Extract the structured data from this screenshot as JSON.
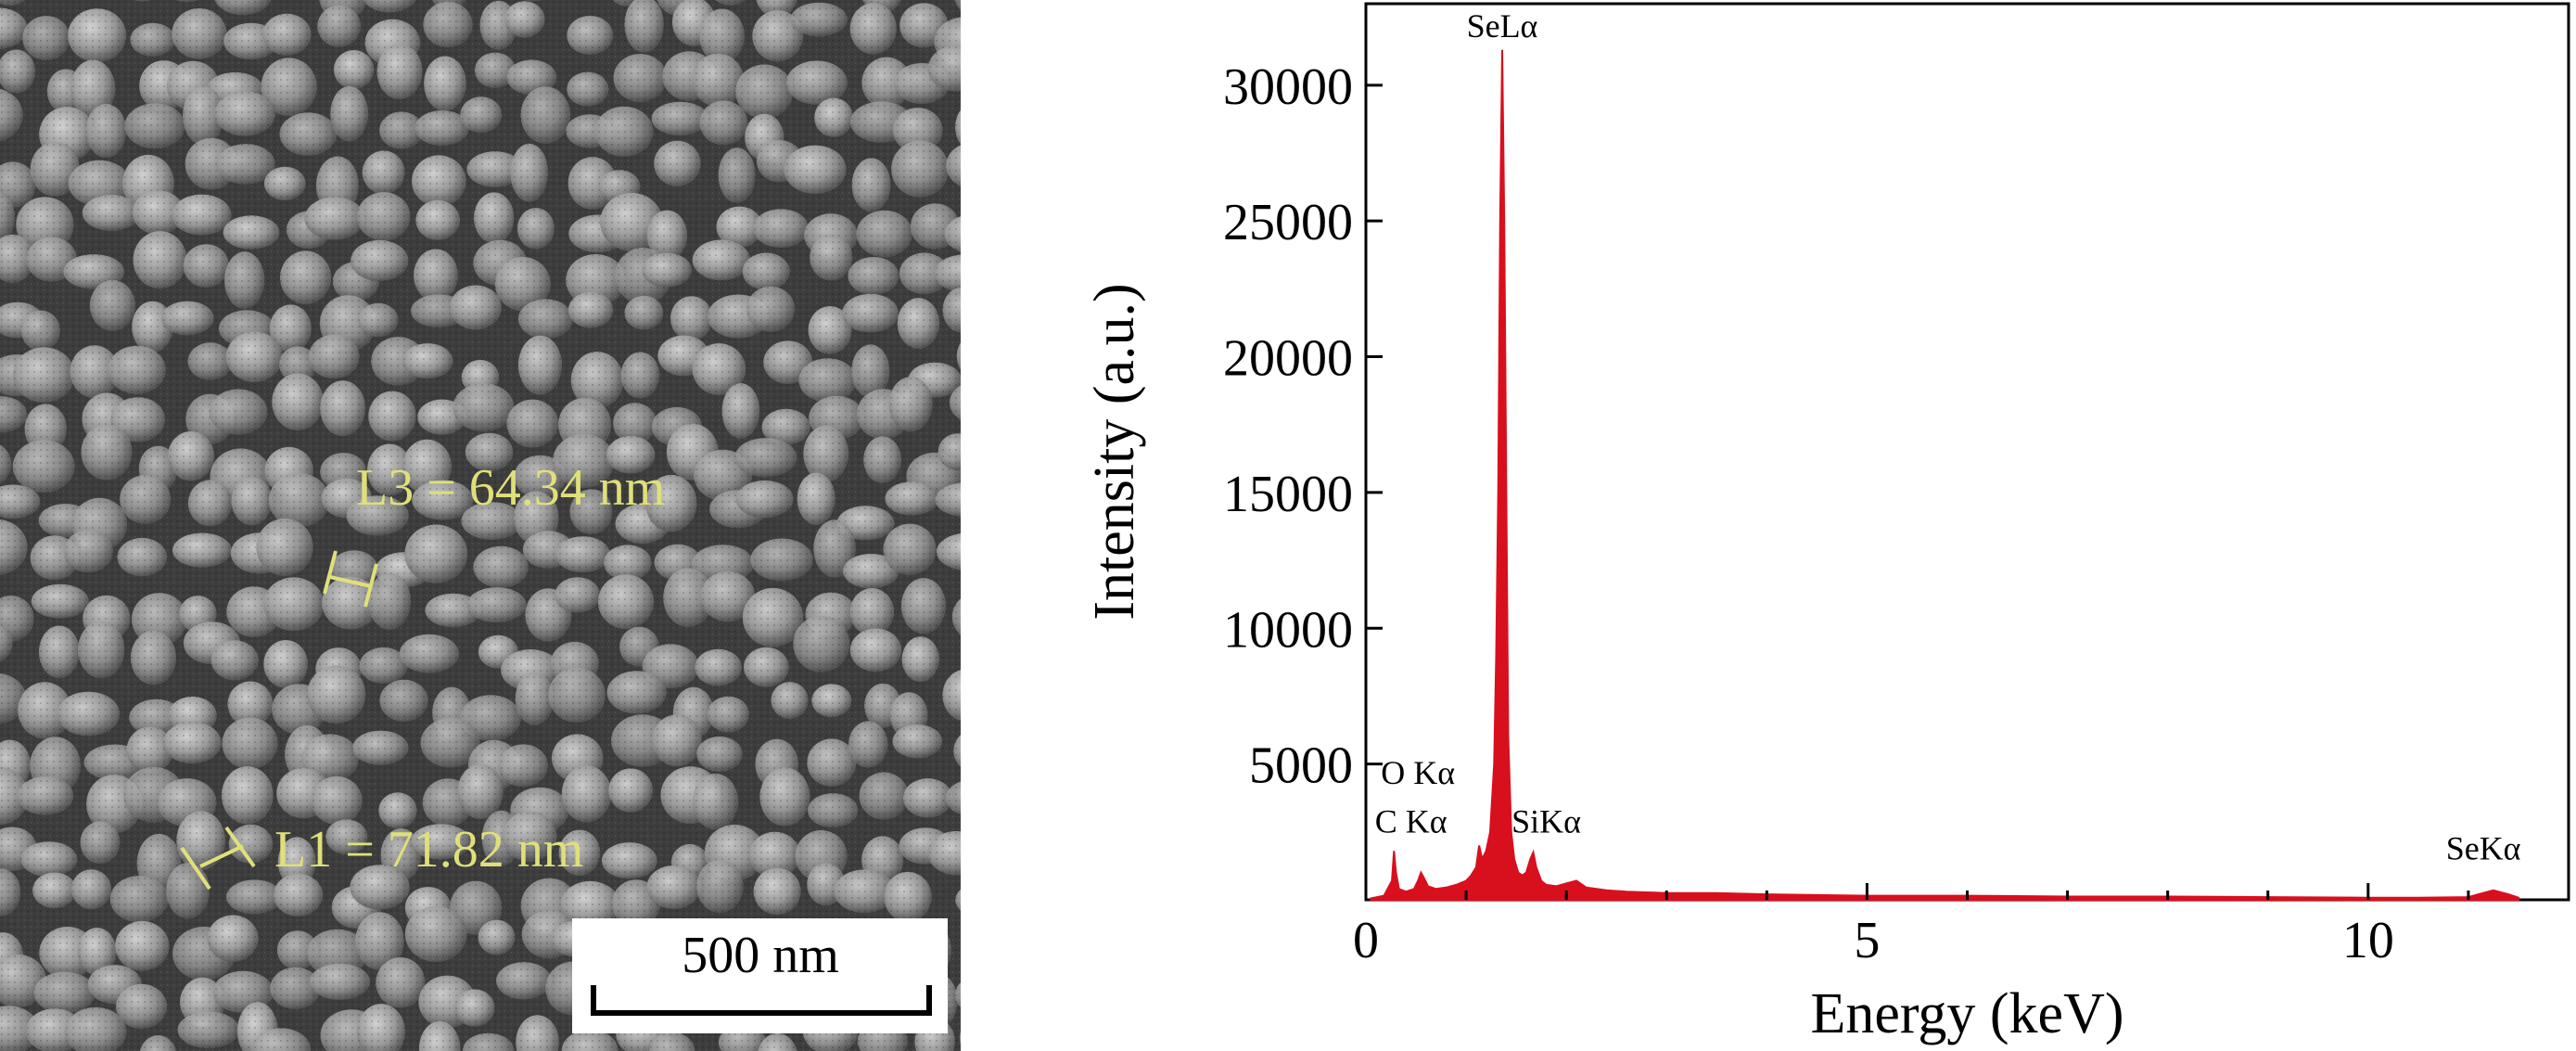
{
  "sem_image": {
    "measurements": [
      {
        "label": "L3 = 64.34 nm"
      },
      {
        "label": "L1 = 71.82 nm"
      }
    ],
    "scale_bar": {
      "label": "500 nm"
    },
    "colors": {
      "annotation": "#e0e07a",
      "background": "#5a5a5a"
    }
  },
  "chart_data": {
    "type": "area",
    "xlabel": "Energy (keV)",
    "ylabel": "Intensity (a.u.)",
    "xlim": [
      0,
      12
    ],
    "ylim": [
      0,
      33000
    ],
    "x_ticks": [
      0,
      5,
      10
    ],
    "y_ticks": [
      5000,
      10000,
      15000,
      20000,
      25000,
      30000
    ],
    "x_tick_labels": [
      "0",
      "5",
      "10"
    ],
    "y_tick_labels": [
      "5000",
      "10000",
      "15000",
      "20000",
      "25000",
      "30000"
    ],
    "color": "#d8101e",
    "series": [
      {
        "x": [
          0.05,
          0.18,
          0.26,
          0.28,
          0.3,
          0.33,
          0.4,
          0.48,
          0.52,
          0.55,
          0.58,
          0.62,
          0.7,
          0.8,
          0.9,
          1.0,
          1.05,
          1.1,
          1.13,
          1.16,
          1.2,
          1.24,
          1.28,
          1.3,
          1.32,
          1.34,
          1.36,
          1.38,
          1.4,
          1.42,
          1.45,
          1.48,
          1.52,
          1.56,
          1.6,
          1.64,
          1.67,
          1.7,
          1.75,
          1.8,
          1.9,
          2.0,
          2.1,
          2.2,
          2.4,
          2.6,
          3.0,
          3.5,
          4.0,
          5.0,
          6.0,
          7.0,
          8.0,
          9.0,
          10.0,
          10.5,
          11.0,
          11.1,
          11.2,
          11.25,
          11.3,
          11.4,
          11.5
        ],
        "values": [
          50,
          150,
          700,
          1800,
          1000,
          400,
          300,
          400,
          700,
          1000,
          800,
          500,
          400,
          450,
          550,
          700,
          900,
          1200,
          2000,
          1500,
          1800,
          2500,
          5000,
          9000,
          15000,
          25000,
          31300,
          25000,
          15500,
          6000,
          2500,
          1500,
          1000,
          900,
          1000,
          1500,
          1750,
          1200,
          700,
          550,
          500,
          600,
          700,
          450,
          350,
          300,
          250,
          250,
          200,
          150,
          150,
          120,
          120,
          100,
          80,
          80,
          100,
          200,
          300,
          350,
          300,
          200,
          80
        ]
      }
    ],
    "annotations": [
      {
        "text": "SeLα",
        "x": 1.36,
        "y": 31300
      },
      {
        "text": "O Kα",
        "x": 0.52,
        "y": 3800
      },
      {
        "text": "C Kα",
        "x": 0.45,
        "y": 2000
      },
      {
        "text": "SiKα",
        "x": 1.8,
        "y": 2000
      },
      {
        "text": "SeKα",
        "x": 11.15,
        "y": 1000
      }
    ]
  }
}
